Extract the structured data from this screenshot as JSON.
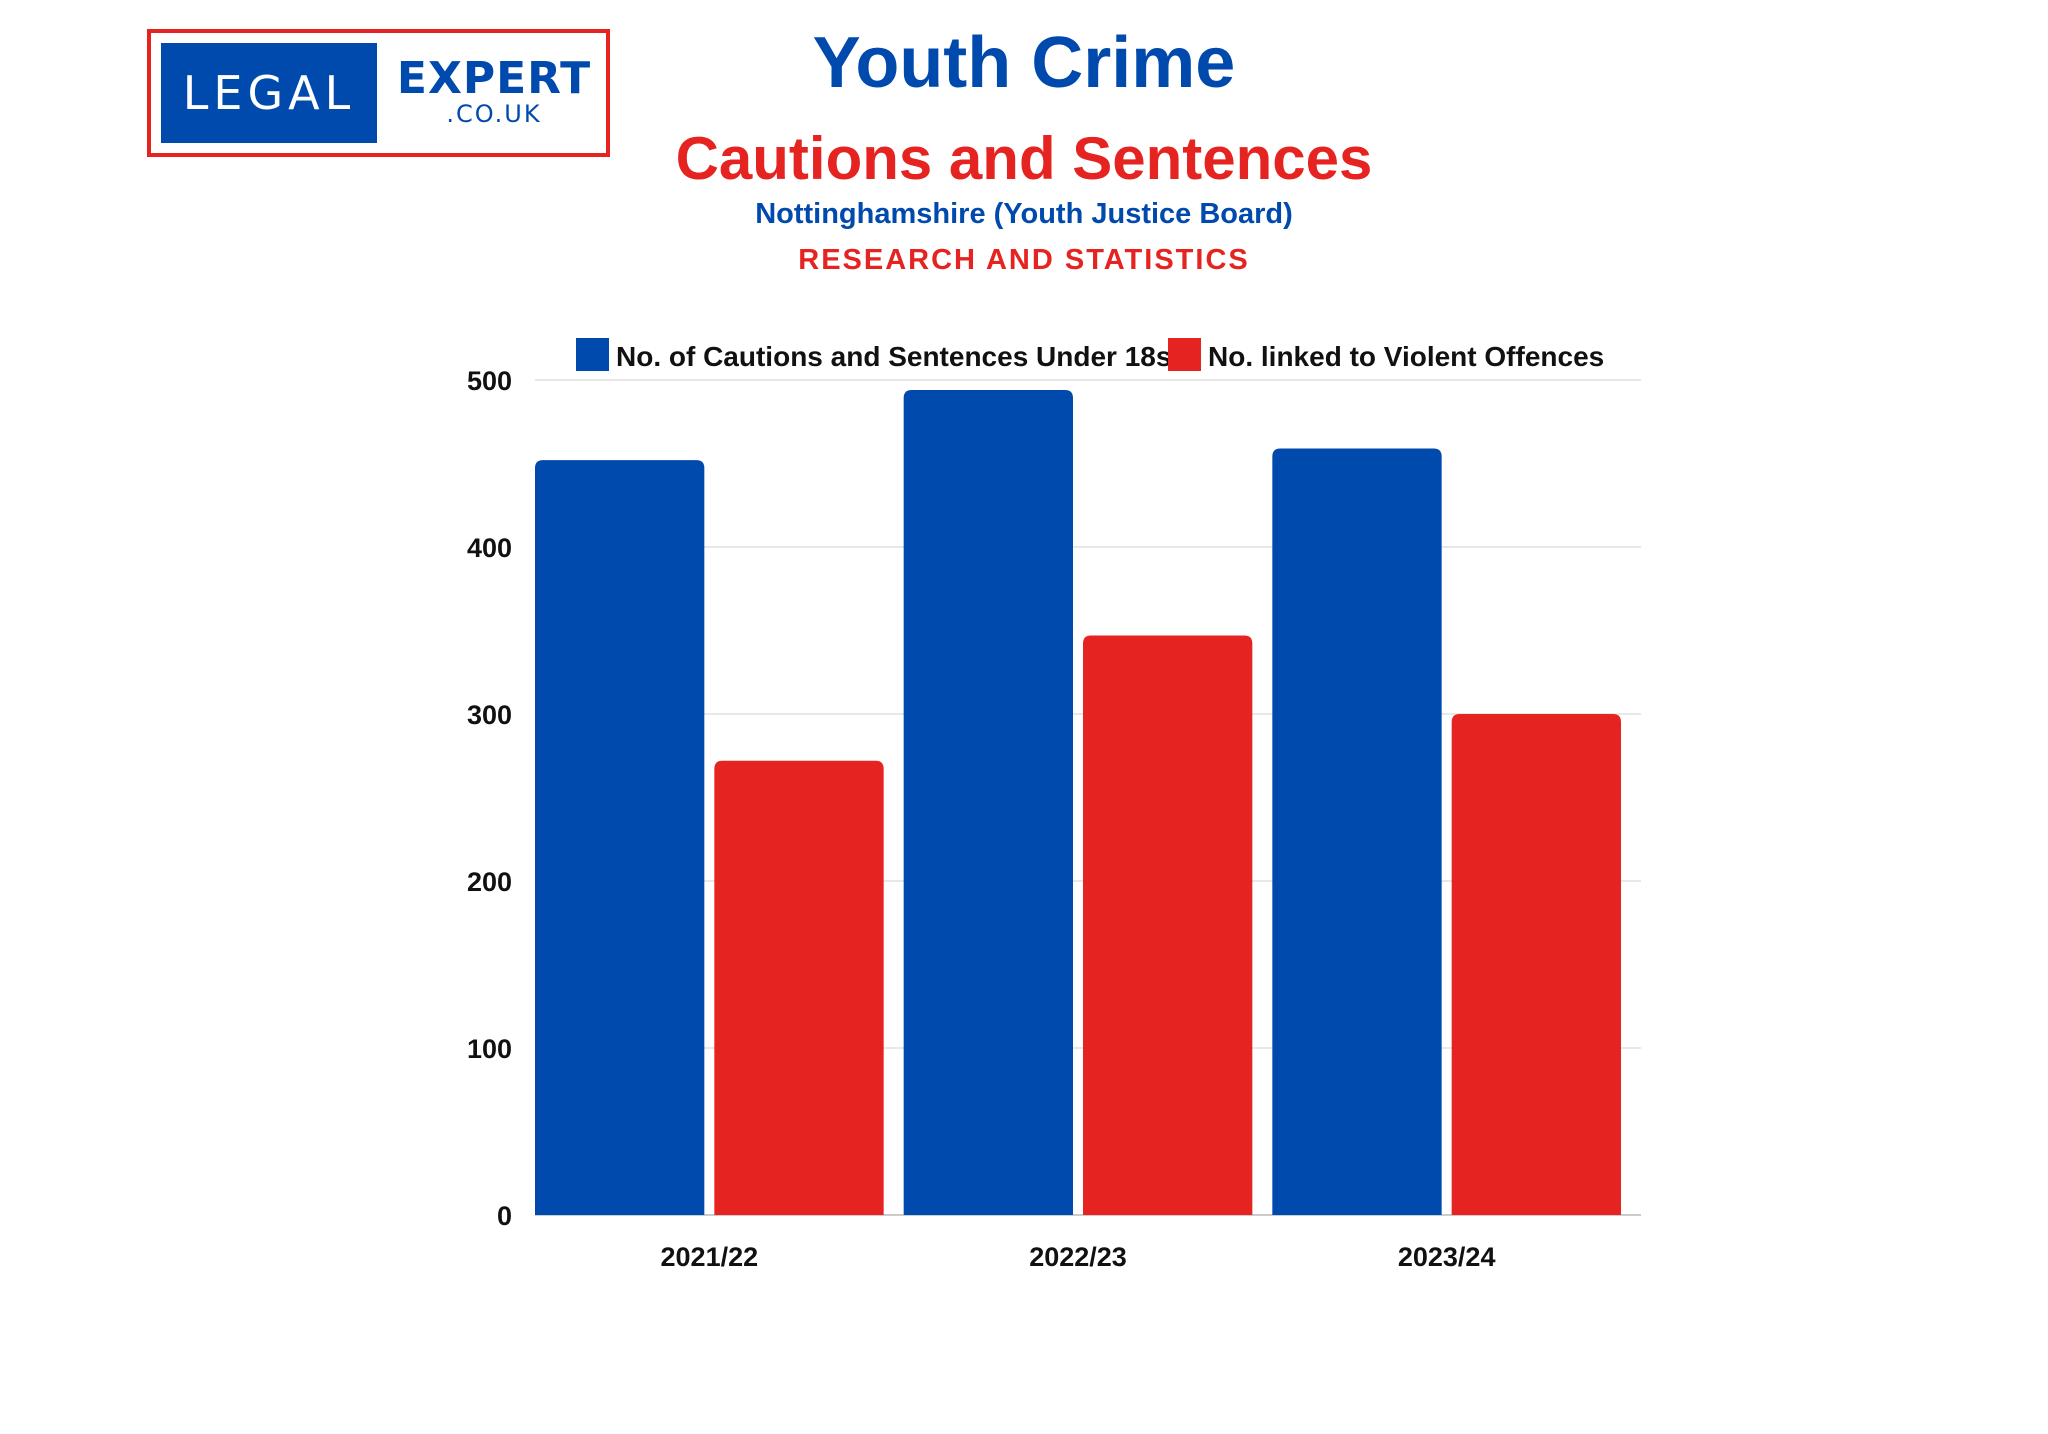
{
  "logo": {
    "left_text": "LEGAL",
    "right_text": "EXPERT",
    "domain_text": ".CO.UK"
  },
  "colors": {
    "blue": "#004aad",
    "red": "#e52421",
    "grid": "#e8e8e8"
  },
  "chart_data": {
    "type": "bar",
    "title": "Youth Crime",
    "subtitle": "Cautions and Sentences",
    "subtitle2": "Nottinghamshire (Youth Justice Board)",
    "subtitle3": "RESEARCH AND STATISTICS",
    "categories": [
      "2021/22",
      "2022/23",
      "2023/24"
    ],
    "series": [
      {
        "name": "No. of Cautions and Sentences Under 18s",
        "color": "#004aad",
        "values": [
          452,
          494,
          459
        ]
      },
      {
        "name": "No. linked to Violent Offences",
        "color": "#e52421",
        "values": [
          272,
          347,
          300
        ]
      }
    ],
    "xlabel": "",
    "ylabel": "",
    "ylim": [
      0,
      500
    ],
    "yticks": [
      "0",
      "100",
      "200",
      "300",
      "400",
      "500"
    ],
    "grid": true,
    "legend": "top"
  }
}
